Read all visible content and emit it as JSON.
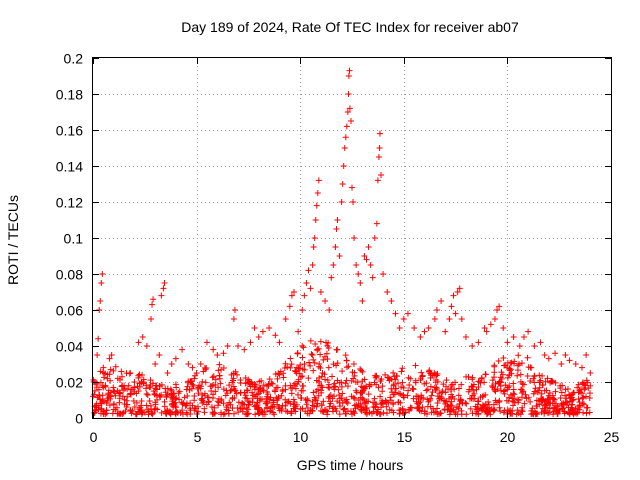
{
  "chart_data": {
    "type": "scatter",
    "title": "Day 189 of 2024, Rate Of TEC Index for receiver ab07",
    "xlabel": "GPS time / hours",
    "ylabel": "ROTI / TECUs",
    "xlim": [
      0,
      25
    ],
    "ylim": [
      0,
      0.2
    ],
    "xticks": [
      0,
      5,
      10,
      15,
      20,
      25
    ],
    "xtick_labels": [
      "0",
      "5",
      "10",
      "15",
      "20",
      "25"
    ],
    "yticks": [
      0,
      0.02,
      0.04,
      0.06,
      0.08,
      0.1,
      0.12,
      0.14,
      0.16,
      0.18,
      0.2
    ],
    "ytick_labels": [
      "0",
      "0.02",
      "0.04",
      "0.06",
      "0.08",
      "0.1",
      "0.12",
      "0.14",
      "0.16",
      "0.18",
      "0.2"
    ],
    "grid": true,
    "marker": "+",
    "color": "#ff0000",
    "series": [
      {
        "name": "ROTI",
        "points": [
          [
            0.0,
            0.012
          ],
          [
            0.1,
            0.02
          ],
          [
            0.2,
            0.035
          ],
          [
            0.25,
            0.044
          ],
          [
            0.3,
            0.06
          ],
          [
            0.35,
            0.065
          ],
          [
            0.4,
            0.075
          ],
          [
            0.45,
            0.08
          ],
          [
            0.5,
            0.028
          ],
          [
            0.6,
            0.018
          ],
          [
            0.8,
            0.033
          ],
          [
            0.9,
            0.035
          ],
          [
            1.0,
            0.015
          ],
          [
            1.2,
            0.022
          ],
          [
            1.5,
            0.018
          ],
          [
            1.8,
            0.025
          ],
          [
            2.0,
            0.02
          ],
          [
            2.2,
            0.042
          ],
          [
            2.4,
            0.045
          ],
          [
            2.6,
            0.04
          ],
          [
            2.8,
            0.055
          ],
          [
            2.85,
            0.063
          ],
          [
            2.9,
            0.066
          ],
          [
            3.0,
            0.03
          ],
          [
            3.2,
            0.035
          ],
          [
            3.3,
            0.068
          ],
          [
            3.4,
            0.072
          ],
          [
            3.45,
            0.075
          ],
          [
            3.6,
            0.025
          ],
          [
            3.8,
            0.03
          ],
          [
            4.0,
            0.033
          ],
          [
            4.3,
            0.038
          ],
          [
            4.6,
            0.03
          ],
          [
            4.8,
            0.028
          ],
          [
            5.0,
            0.025
          ],
          [
            5.2,
            0.03
          ],
          [
            5.5,
            0.042
          ],
          [
            5.8,
            0.038
          ],
          [
            6.0,
            0.035
          ],
          [
            6.3,
            0.036
          ],
          [
            6.5,
            0.04
          ],
          [
            6.8,
            0.055
          ],
          [
            6.85,
            0.06
          ],
          [
            7.0,
            0.04
          ],
          [
            7.3,
            0.038
          ],
          [
            7.6,
            0.042
          ],
          [
            7.8,
            0.05
          ],
          [
            8.0,
            0.045
          ],
          [
            8.2,
            0.048
          ],
          [
            8.5,
            0.05
          ],
          [
            8.8,
            0.046
          ],
          [
            9.0,
            0.042
          ],
          [
            9.3,
            0.055
          ],
          [
            9.5,
            0.062
          ],
          [
            9.6,
            0.068
          ],
          [
            9.7,
            0.07
          ],
          [
            9.9,
            0.048
          ],
          [
            10.1,
            0.06
          ],
          [
            10.2,
            0.068
          ],
          [
            10.3,
            0.075
          ],
          [
            10.4,
            0.082
          ],
          [
            10.5,
            0.072
          ],
          [
            10.6,
            0.085
          ],
          [
            10.65,
            0.095
          ],
          [
            10.7,
            0.1
          ],
          [
            10.75,
            0.11
          ],
          [
            10.8,
            0.118
          ],
          [
            10.85,
            0.125
          ],
          [
            10.9,
            0.132
          ],
          [
            11.0,
            0.07
          ],
          [
            11.2,
            0.065
          ],
          [
            11.4,
            0.06
          ],
          [
            11.5,
            0.078
          ],
          [
            11.6,
            0.085
          ],
          [
            11.7,
            0.095
          ],
          [
            11.75,
            0.105
          ],
          [
            11.8,
            0.11
          ],
          [
            11.9,
            0.09
          ],
          [
            12.0,
            0.12
          ],
          [
            12.05,
            0.13
          ],
          [
            12.1,
            0.14
          ],
          [
            12.15,
            0.15
          ],
          [
            12.2,
            0.156
          ],
          [
            12.25,
            0.162
          ],
          [
            12.3,
            0.17
          ],
          [
            12.33,
            0.18
          ],
          [
            12.35,
            0.19
          ],
          [
            12.38,
            0.193
          ],
          [
            12.4,
            0.172
          ],
          [
            12.45,
            0.165
          ],
          [
            12.5,
            0.128
          ],
          [
            12.55,
            0.12
          ],
          [
            12.6,
            0.1
          ],
          [
            12.7,
            0.085
          ],
          [
            12.8,
            0.08
          ],
          [
            12.9,
            0.075
          ],
          [
            13.0,
            0.065
          ],
          [
            13.1,
            0.09
          ],
          [
            13.2,
            0.088
          ],
          [
            13.3,
            0.095
          ],
          [
            13.4,
            0.085
          ],
          [
            13.5,
            0.078
          ],
          [
            13.6,
            0.1
          ],
          [
            13.7,
            0.108
          ],
          [
            13.75,
            0.132
          ],
          [
            13.8,
            0.145
          ],
          [
            13.83,
            0.15
          ],
          [
            13.85,
            0.158
          ],
          [
            13.9,
            0.135
          ],
          [
            14.0,
            0.08
          ],
          [
            14.2,
            0.07
          ],
          [
            14.4,
            0.065
          ],
          [
            14.6,
            0.058
          ],
          [
            14.8,
            0.05
          ],
          [
            15.0,
            0.055
          ],
          [
            15.2,
            0.058
          ],
          [
            15.5,
            0.05
          ],
          [
            15.8,
            0.045
          ],
          [
            16.0,
            0.048
          ],
          [
            16.2,
            0.05
          ],
          [
            16.5,
            0.055
          ],
          [
            16.6,
            0.06
          ],
          [
            16.8,
            0.065
          ],
          [
            17.0,
            0.048
          ],
          [
            17.2,
            0.055
          ],
          [
            17.3,
            0.062
          ],
          [
            17.4,
            0.068
          ],
          [
            17.5,
            0.058
          ],
          [
            17.6,
            0.07
          ],
          [
            17.7,
            0.072
          ],
          [
            17.8,
            0.055
          ],
          [
            18.0,
            0.045
          ],
          [
            18.3,
            0.04
          ],
          [
            18.6,
            0.042
          ],
          [
            18.9,
            0.05
          ],
          [
            19.0,
            0.048
          ],
          [
            19.2,
            0.052
          ],
          [
            19.4,
            0.055
          ],
          [
            19.5,
            0.06
          ],
          [
            19.6,
            0.062
          ],
          [
            19.8,
            0.05
          ],
          [
            20.0,
            0.042
          ],
          [
            20.3,
            0.045
          ],
          [
            20.6,
            0.04
          ],
          [
            20.8,
            0.045
          ],
          [
            21.0,
            0.048
          ],
          [
            21.3,
            0.04
          ],
          [
            21.6,
            0.042
          ],
          [
            21.8,
            0.035
          ],
          [
            22.0,
            0.033
          ],
          [
            22.3,
            0.036
          ],
          [
            22.6,
            0.03
          ],
          [
            22.8,
            0.035
          ],
          [
            23.0,
            0.032
          ],
          [
            23.3,
            0.03
          ],
          [
            23.6,
            0.028
          ],
          [
            23.8,
            0.035
          ],
          [
            24.0,
            0.025
          ]
        ]
      }
    ]
  }
}
